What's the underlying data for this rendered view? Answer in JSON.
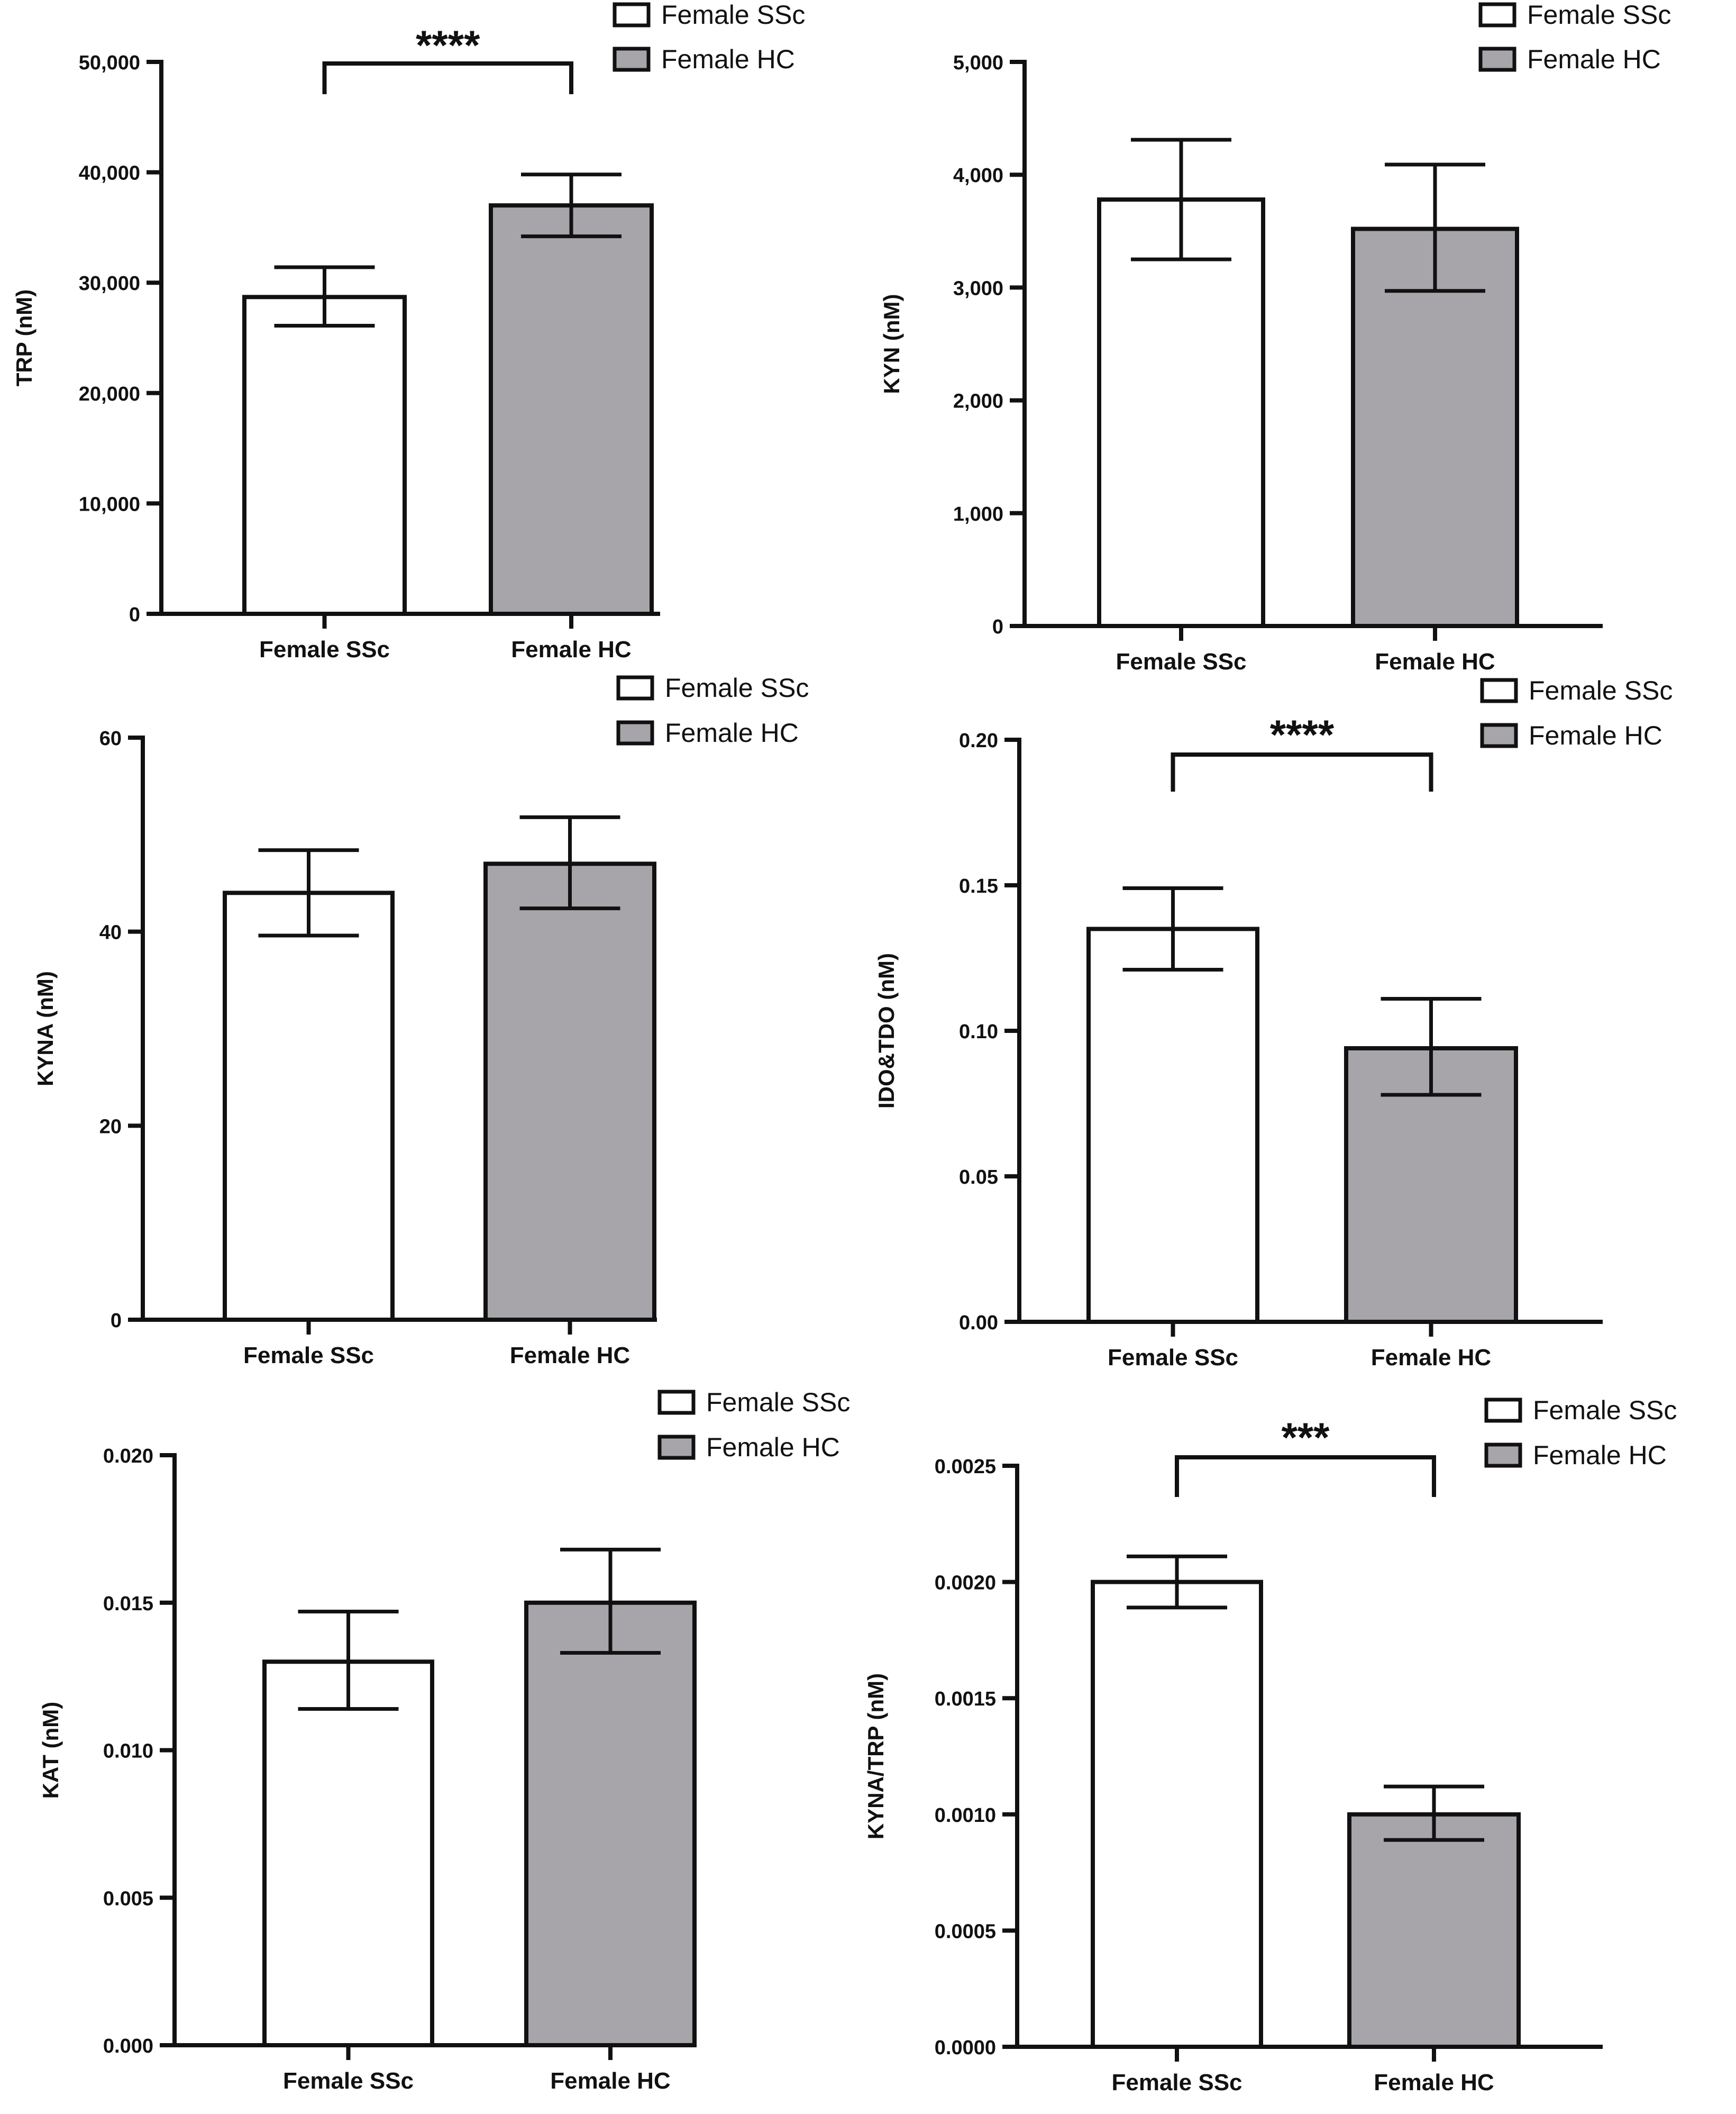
{
  "figure": {
    "background": "#ffffff"
  },
  "colors": {
    "ssc_fill": "#ffffff",
    "hc_fill": "#a7a5aa",
    "stroke": "#111111"
  },
  "legend": {
    "items": [
      "Female SSc",
      "Female HC"
    ]
  },
  "chart_data": [
    {
      "type": "bar",
      "id": "trp",
      "title": "",
      "xlabel": "",
      "ylabel": "TRP (nM)",
      "categories": [
        "Female SSc",
        "Female HC"
      ],
      "values": [
        28700,
        37000
      ],
      "error_low": [
        26100,
        34200
      ],
      "error_high": [
        31400,
        39800
      ],
      "ylim": [
        0,
        50000
      ],
      "yticks": [
        0,
        10000,
        20000,
        30000,
        40000,
        50000
      ],
      "ytick_labels": [
        "0",
        "10,000",
        "20,000",
        "30,000",
        "40,000",
        "50,000"
      ],
      "significance": "****",
      "legend": [
        "Female SSc",
        "Female HC"
      ]
    },
    {
      "type": "bar",
      "id": "kyn",
      "title": "",
      "xlabel": "",
      "ylabel": "KYN (nM)",
      "categories": [
        "Female SSc",
        "Female HC"
      ],
      "values": [
        3780,
        3520
      ],
      "error_low": [
        3250,
        2970
      ],
      "error_high": [
        4310,
        4090
      ],
      "ylim": [
        0,
        5000
      ],
      "yticks": [
        0,
        1000,
        2000,
        3000,
        4000,
        5000
      ],
      "ytick_labels": [
        "0",
        "1,000",
        "2,000",
        "3,000",
        "4,000",
        "5,000"
      ],
      "significance": "",
      "legend": [
        "Female SSc",
        "Female HC"
      ]
    },
    {
      "type": "bar",
      "id": "kyna",
      "title": "",
      "xlabel": "",
      "ylabel": "KYNA (nM)",
      "categories": [
        "Female SSc",
        "Female HC"
      ],
      "values": [
        44,
        47
      ],
      "error_low": [
        39.6,
        42.4
      ],
      "error_high": [
        48.4,
        51.8
      ],
      "ylim": [
        0,
        60
      ],
      "yticks": [
        0,
        20,
        40,
        60
      ],
      "ytick_labels": [
        "0",
        "20",
        "40",
        "60"
      ],
      "significance": "",
      "legend": [
        "Female SSc",
        "Female HC"
      ]
    },
    {
      "type": "bar",
      "id": "ido",
      "title": "",
      "xlabel": "",
      "ylabel": "IDO&TDO (nM)",
      "categories": [
        "Female SSc",
        "Female HC"
      ],
      "values": [
        0.135,
        0.094
      ],
      "error_low": [
        0.121,
        0.078
      ],
      "error_high": [
        0.149,
        0.111
      ],
      "ylim": [
        0,
        0.2
      ],
      "yticks": [
        0,
        0.05,
        0.1,
        0.15,
        0.2
      ],
      "ytick_labels": [
        "0.00",
        "0.05",
        "0.10",
        "0.15",
        "0.20"
      ],
      "significance": "****",
      "legend": [
        "Female SSc",
        "Female HC"
      ]
    },
    {
      "type": "bar",
      "id": "kat",
      "title": "",
      "xlabel": "",
      "ylabel": "KAT (nM)",
      "categories": [
        "Female SSc",
        "Female HC"
      ],
      "values": [
        0.013,
        0.015
      ],
      "error_low": [
        0.0114,
        0.0133
      ],
      "error_high": [
        0.0147,
        0.0168
      ],
      "ylim": [
        0,
        0.02
      ],
      "yticks": [
        0,
        0.005,
        0.01,
        0.015,
        0.02
      ],
      "ytick_labels": [
        "0.000",
        "0.005",
        "0.010",
        "0.015",
        "0.020"
      ],
      "significance": "",
      "legend": [
        "Female SSc",
        "Female HC"
      ]
    },
    {
      "type": "bar",
      "id": "kyna_trp",
      "title": "",
      "xlabel": "",
      "ylabel": "KYNA/TRP (nM)",
      "categories": [
        "Female SSc",
        "Female HC"
      ],
      "values": [
        0.002,
        0.001
      ],
      "error_low": [
        0.00189,
        0.00089
      ],
      "error_high": [
        0.00211,
        0.00112
      ],
      "ylim": [
        0,
        0.0025
      ],
      "yticks": [
        0,
        0.0005,
        0.001,
        0.0015,
        0.002,
        0.0025
      ],
      "ytick_labels": [
        "0.0000",
        "0.0005",
        "0.0010",
        "0.0015",
        "0.0020",
        "0.0025"
      ],
      "significance": "***",
      "legend": [
        "Female SSc",
        "Female HC"
      ]
    }
  ]
}
